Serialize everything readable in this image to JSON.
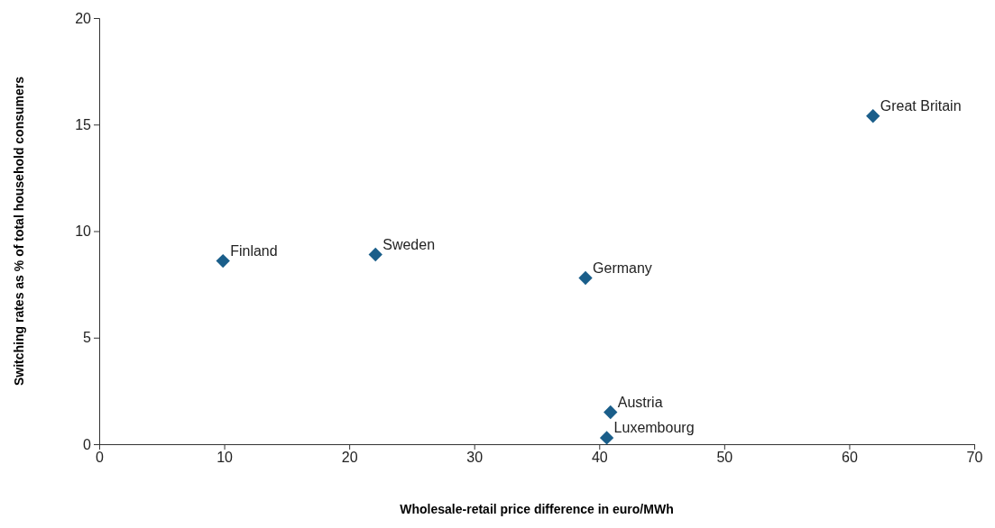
{
  "chart_data": {
    "type": "scatter",
    "xlabel": "Wholesale-retail price difference in euro/MWh",
    "ylabel": "Switching rates as % of total household consumers",
    "x": [
      9.9,
      22.1,
      38.9,
      61.9,
      40.9,
      40.6
    ],
    "values": [
      8.6,
      8.9,
      7.8,
      15.4,
      1.5,
      0.3
    ],
    "color": "#1a5e8a",
    "marker": "diamond",
    "grid": false,
    "xlim": [
      0,
      70
    ],
    "xticks": [
      0,
      10,
      20,
      30,
      40,
      50,
      60,
      70
    ],
    "ylim": [
      0,
      20
    ],
    "yticks": [
      0,
      5,
      10,
      15,
      20
    ],
    "annotations": [
      {
        "text": "Finland",
        "x": 9.9,
        "y": 8.6
      },
      {
        "text": "Sweden",
        "x": 22.1,
        "y": 8.9
      },
      {
        "text": "Germany",
        "x": 38.9,
        "y": 7.8
      },
      {
        "text": "Great Britain",
        "x": 61.9,
        "y": 15.4
      },
      {
        "text": "Austria",
        "x": 40.9,
        "y": 1.5
      },
      {
        "text": "Luxembourg",
        "x": 40.6,
        "y": 0.3
      }
    ]
  }
}
